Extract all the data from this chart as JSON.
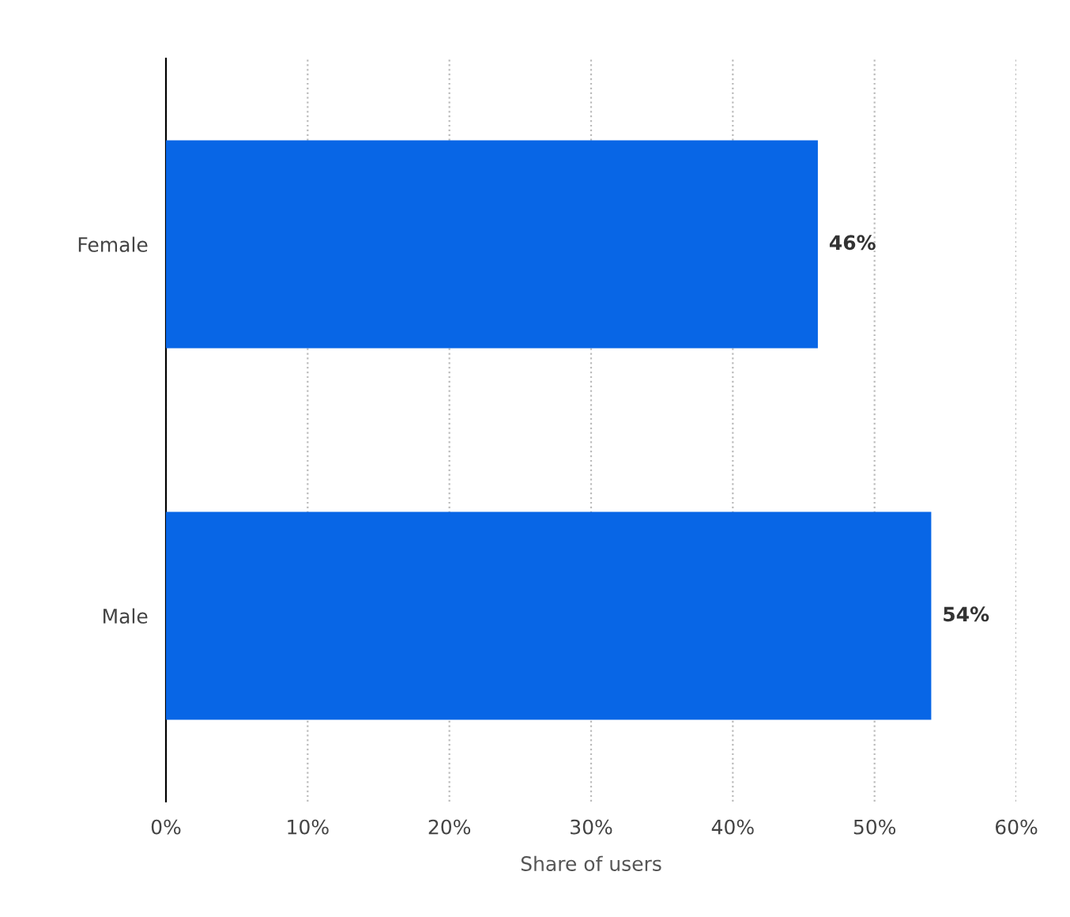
{
  "chart_data": {
    "type": "bar",
    "orientation": "horizontal",
    "categories": [
      "Female",
      "Male"
    ],
    "values": [
      46,
      54
    ],
    "color": "#0866e6",
    "value_labels": [
      "46%",
      "54%"
    ],
    "xlabel": "Share of users",
    "xlim": [
      0,
      60
    ],
    "xticks": [
      {
        "value": 0,
        "label": "0%"
      },
      {
        "value": 10,
        "label": "10%"
      },
      {
        "value": 20,
        "label": "20%"
      },
      {
        "value": 30,
        "label": "30%"
      },
      {
        "value": 40,
        "label": "40%"
      },
      {
        "value": 50,
        "label": "50%"
      },
      {
        "value": 60,
        "label": "60%"
      }
    ],
    "grid": "x",
    "legend": false
  }
}
